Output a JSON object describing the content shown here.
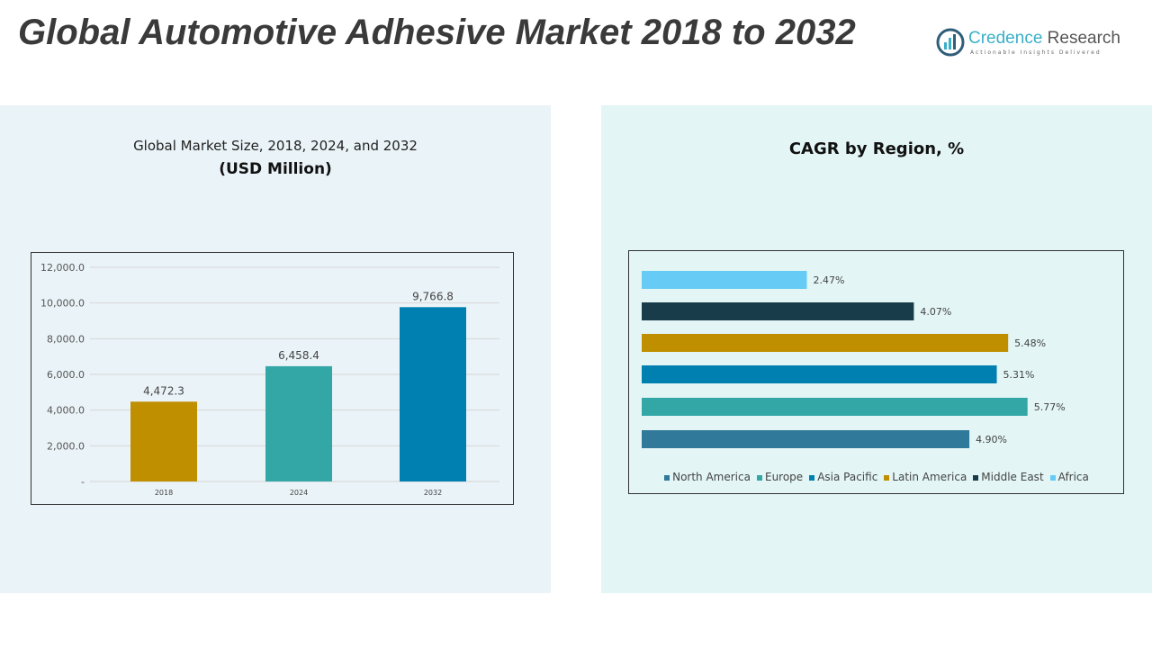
{
  "header": {
    "title": "Global Automotive Adhesive Market 2018 to 2032"
  },
  "logo": {
    "name_a": "Credence",
    "name_b": " Research",
    "tagline": "Actionable Insights Delivered"
  },
  "chart_data": [
    {
      "type": "bar",
      "title": "Global Market Size, 2018, 2024, and 2032",
      "subtitle": "(USD Million)",
      "categories": [
        "2018",
        "2024",
        "2032"
      ],
      "values": [
        4472.3,
        6458.4,
        9766.8
      ],
      "value_labels": [
        "4,472.3",
        "6,458.4",
        "9,766.8"
      ],
      "colors": [
        "#bf8f00",
        "#33a6a6",
        "#0080b0"
      ],
      "ylim": [
        0,
        12000
      ],
      "yticks": [
        0,
        2000,
        4000,
        6000,
        8000,
        10000,
        12000
      ],
      "ytick_labels": [
        "-",
        "2,000.0",
        "4,000.0",
        "6,000.0",
        "8,000.0",
        "10,000.0",
        "12,000.0"
      ],
      "grid": true
    },
    {
      "type": "bar",
      "orientation": "horizontal",
      "title": "CAGR by Region, %",
      "categories": [
        "North America",
        "Europe",
        "Asia Pacific",
        "Latin America",
        "Middle East",
        "Africa"
      ],
      "values": [
        4.9,
        5.77,
        5.31,
        5.48,
        4.07,
        2.47
      ],
      "value_labels": [
        "4.90%",
        "5.77%",
        "5.31%",
        "5.48%",
        "4.07%",
        "2.47%"
      ],
      "colors": [
        "#31799a",
        "#33a6a6",
        "#0080b0",
        "#bf8f00",
        "#183c4a",
        "#66ccf5"
      ],
      "legend_position": "bottom",
      "grid": false
    }
  ]
}
